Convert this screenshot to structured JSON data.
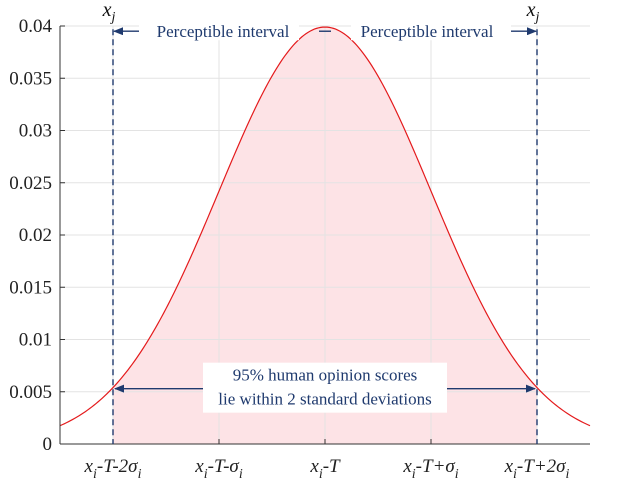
{
  "chart_data": {
    "type": "area",
    "title": "",
    "xlabel": "",
    "ylabel": "",
    "ylim": [
      0,
      0.04
    ],
    "xlim": [
      -2.5,
      2.5
    ],
    "grid": true,
    "y_ticks": [
      "0",
      "0.005",
      "0.01",
      "0.015",
      "0.02",
      "0.025",
      "0.03",
      "0.035",
      "0.04"
    ],
    "y_tick_values": [
      0,
      0.005,
      0.01,
      0.015,
      0.02,
      0.025,
      0.03,
      0.035,
      0.04
    ],
    "x_tick_values": [
      -2,
      -1,
      0,
      1,
      2
    ],
    "x_ticks": [
      {
        "main": "x",
        "sub": "i",
        "rest": "-T-2σ",
        "sub2": "i"
      },
      {
        "main": "x",
        "sub": "i",
        "rest": "-T-σ",
        "sub2": "i"
      },
      {
        "main": "x",
        "sub": "i",
        "rest": "-T",
        "sub2": ""
      },
      {
        "main": "x",
        "sub": "i",
        "rest": "-T+σ",
        "sub2": "i"
      },
      {
        "main": "x",
        "sub": "i",
        "rest": "-T+2σ",
        "sub2": "i"
      }
    ],
    "series": [
      {
        "distribution": "normal",
        "mean": 0,
        "std": 1,
        "peak": 0.0399,
        "color": "#e41a1c",
        "fill_range": [
          -2,
          2
        ],
        "fill_color": "#fde3e6"
      }
    ],
    "annotations": {
      "left_interval": "Perceptible interval",
      "right_interval": "Perceptible interval",
      "xj_label_main": "x",
      "xj_label_sub": "j",
      "center_text_line1": "95% human opinion scores",
      "center_text_line2": "lie within 2 standard deviations",
      "interval_y": 0.0395,
      "range_arrow_y": 0.0052
    }
  }
}
